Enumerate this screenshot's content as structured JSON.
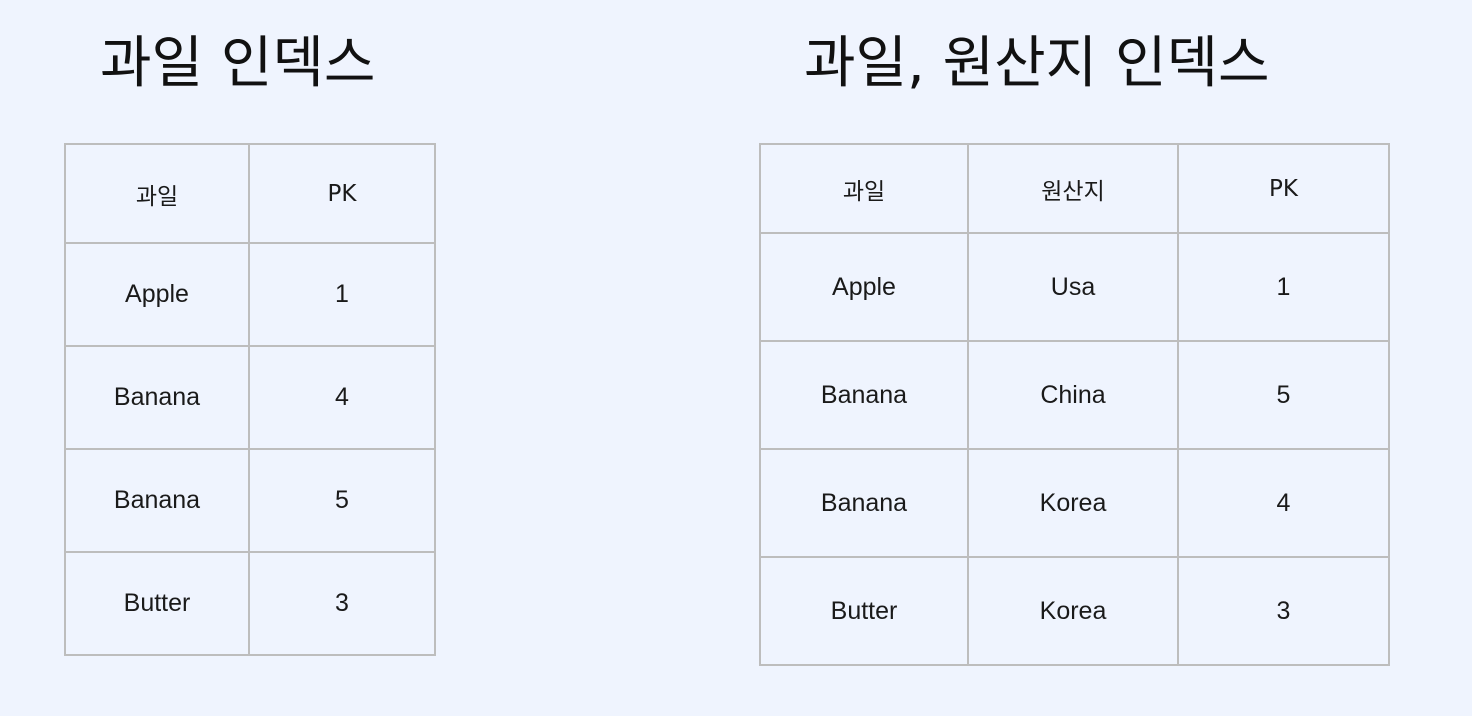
{
  "left": {
    "title": "과일 인덱스",
    "headers": [
      "과일",
      "PK"
    ],
    "rows": [
      [
        "Apple",
        "1"
      ],
      [
        "Banana",
        "4"
      ],
      [
        "Banana",
        "5"
      ],
      [
        "Butter",
        "3"
      ]
    ]
  },
  "right": {
    "title": "과일, 원산지 인덱스",
    "headers": [
      "과일",
      "원산지",
      "PK"
    ],
    "rows": [
      [
        "Apple",
        "Usa",
        "1"
      ],
      [
        "Banana",
        "China",
        "5"
      ],
      [
        "Banana",
        "Korea",
        "4"
      ],
      [
        "Butter",
        "Korea",
        "3"
      ]
    ]
  }
}
